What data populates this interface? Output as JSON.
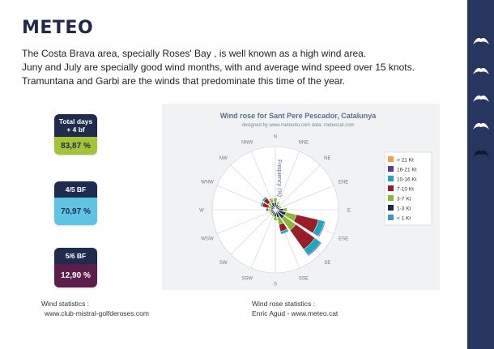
{
  "page": {
    "title": "METEO",
    "intro": [
      "The Costa Brava area, specially Roses' Bay , is well known as a high wind area.",
      "Juny and July are specially good wind months, with and average wind speed over 15 knots.",
      "Tramuntana and Garbi are the winds that predominate this time of the year."
    ]
  },
  "stats": [
    {
      "label_line1": "Total days",
      "label_line2": "+ 4 bf",
      "value": "83,87 %",
      "color": "#a4c336"
    },
    {
      "label": "4/5 BF",
      "value": "70,97 %",
      "color": "#5fc3e2"
    },
    {
      "label": "5/6 BF",
      "value": "12,90 %",
      "color": "#5c1f4b"
    }
  ],
  "sources": {
    "left": {
      "line1": "Wind statistics :",
      "line2": "www.club-mistral-golfderoses.com"
    },
    "right": {
      "line1": "Wind rose statistics :",
      "line2": "Enric Agud - www.meteo.cat"
    }
  },
  "sidebar": {
    "icons": [
      "wave-icon",
      "wave-icon",
      "wave-icon",
      "wave-icon",
      "wave-icon"
    ],
    "color": "#27365f"
  },
  "chart_data": {
    "type": "windrose",
    "title": "Wind rose for Sant Pere Pescador, Catalunya",
    "subtitle": "designed by www.meteo4u.com data: meteocat.com",
    "axis_label": "Frequency (%)",
    "directions": [
      "N",
      "NNE",
      "NE",
      "ENE",
      "E",
      "ESE",
      "SE",
      "SSE",
      "S",
      "SSW",
      "SW",
      "WSW",
      "W",
      "WNW",
      "NW",
      "NNW"
    ],
    "speed_bins": [
      "< 1 Kt",
      "1-3 Kt",
      "3-7 Kt",
      "7-10 Kt",
      "10-16 Kt",
      "16-21 Kt",
      "> 21 Kt"
    ],
    "colors": [
      "#4a8fcf",
      "#1c2a44",
      "#8cb83a",
      "#9b1c24",
      "#19a9c0",
      "#5a3c8c",
      "#f2a04a"
    ],
    "legend_order": [
      "> 21 Kt",
      "16-21 Kt",
      "10-16 Kt",
      "7-10 Kt",
      "3-7 Kt",
      "1-3 Kt",
      "< 1 Kt"
    ],
    "legend_position": "right",
    "series": [
      {
        "name": "< 1 Kt",
        "values": [
          0.3,
          0.2,
          0.2,
          0.2,
          0.3,
          0.4,
          0.4,
          0.3,
          0.3,
          0.2,
          0.2,
          0.2,
          0.2,
          0.2,
          0.2,
          0.3
        ]
      },
      {
        "name": "1-3 Kt",
        "values": [
          0.5,
          0.4,
          0.3,
          0.3,
          0.6,
          0.8,
          0.8,
          0.6,
          0.5,
          0.4,
          0.3,
          0.3,
          0.3,
          0.3,
          0.4,
          0.5
        ]
      },
      {
        "name": "3-7 Kt",
        "values": [
          0.4,
          0.3,
          0.2,
          0.2,
          0.4,
          1.2,
          1.6,
          0.8,
          0.4,
          0.2,
          0.2,
          0.2,
          0.3,
          0.3,
          0.4,
          0.4
        ]
      },
      {
        "name": "7-10 Kt",
        "values": [
          0.1,
          0.0,
          0.0,
          0.0,
          0.0,
          2.5,
          2.6,
          0.8,
          0.0,
          0.0,
          0.0,
          0.0,
          0.2,
          0.7,
          0.6,
          0.1
        ]
      },
      {
        "name": "10-16 Kt",
        "values": [
          0.0,
          0.0,
          0.0,
          0.0,
          0.0,
          0.7,
          0.8,
          0.3,
          0.0,
          0.0,
          0.0,
          0.0,
          0.0,
          0.2,
          0.2,
          0.0
        ]
      },
      {
        "name": "16-21 Kt",
        "values": [
          0.0,
          0.0,
          0.0,
          0.0,
          0.0,
          0.1,
          0.1,
          0.0,
          0.0,
          0.0,
          0.0,
          0.0,
          0.0,
          0.0,
          0.0,
          0.0
        ]
      },
      {
        "name": "> 21 Kt",
        "values": [
          0,
          0,
          0,
          0,
          0,
          0,
          0,
          0,
          0,
          0,
          0,
          0,
          0,
          0,
          0,
          0
        ]
      }
    ],
    "rmax": 7,
    "rings": 5,
    "grid": true
  }
}
